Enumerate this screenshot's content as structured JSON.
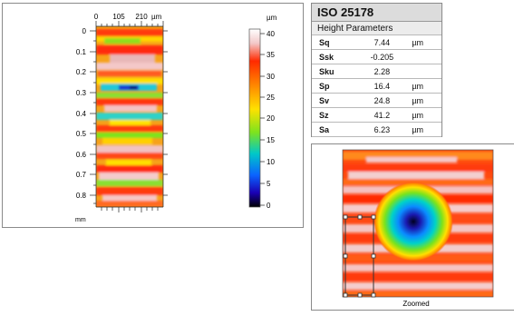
{
  "height_map": {
    "x_ticks": [
      "0",
      "105",
      "210"
    ],
    "x_unit": "µm",
    "y_ticks": [
      "0",
      "0.1",
      "0.2",
      "0.3",
      "0.4",
      "0.5",
      "0.6",
      "0.7",
      "0.8"
    ],
    "y_unit": "mm",
    "colorbar_unit": "µm",
    "colorbar_ticks": [
      "40",
      "35",
      "30",
      "25",
      "20",
      "15",
      "10",
      "5",
      "0"
    ]
  },
  "parameters": {
    "title": "ISO 25178",
    "subtitle": "Height Parameters",
    "rows": [
      {
        "name": "Sq",
        "value": "7.44",
        "unit": "µm"
      },
      {
        "name": "Ssk",
        "value": "-0.205",
        "unit": ""
      },
      {
        "name": "Sku",
        "value": "2.28",
        "unit": ""
      },
      {
        "name": "Sp",
        "value": "16.4",
        "unit": "µm"
      },
      {
        "name": "Sv",
        "value": "24.8",
        "unit": "µm"
      },
      {
        "name": "Sz",
        "value": "41.2",
        "unit": "µm"
      },
      {
        "name": "Sa",
        "value": "6.23",
        "unit": "µm"
      }
    ]
  },
  "zoom_view": {
    "caption": "Zoomed"
  },
  "colors": {
    "panel_border": "#8a8a8a",
    "title_bg": "#dcdcdc",
    "selection": "#333333"
  }
}
